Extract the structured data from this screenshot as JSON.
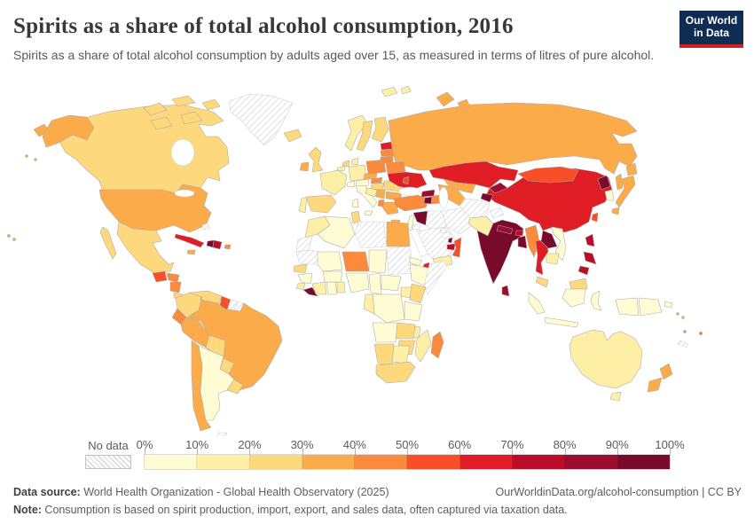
{
  "header": {
    "title": "Spirits as a share of total alcohol consumption, 2016",
    "subtitle": "Spirits as a share of total alcohol consumption by adults aged over 15, as measured in terms of litres of pure alcohol.",
    "logo": {
      "line1": "Our World",
      "line2": "in Data",
      "bg_color": "#0f2d52",
      "accent_color": "#c9262c"
    }
  },
  "legend": {
    "no_data_label": "No data",
    "tick_labels": [
      "0%",
      "10%",
      "20%",
      "30%",
      "40%",
      "50%",
      "60%",
      "70%",
      "80%",
      "90%",
      "100%"
    ],
    "bins": [
      {
        "label": "0-10%",
        "color": "#fffcd3"
      },
      {
        "label": "10-20%",
        "color": "#feefa6"
      },
      {
        "label": "20-30%",
        "color": "#fdd87c"
      },
      {
        "label": "30-40%",
        "color": "#fcab4b"
      },
      {
        "label": "40-50%",
        "color": "#fb8a3c"
      },
      {
        "label": "50-60%",
        "color": "#f84f28"
      },
      {
        "label": "60-70%",
        "color": "#e01d24"
      },
      {
        "label": "70-80%",
        "color": "#bb0d29"
      },
      {
        "label": "80-90%",
        "color": "#9c0c2f"
      },
      {
        "label": "90-100%",
        "color": "#7a0a2c"
      }
    ]
  },
  "footer": {
    "datasource_label": "Data source:",
    "datasource_text": " World Health Organization - Global Health Observatory (2025)",
    "link_text": "OurWorldinData.org/alcohol-consumption | CC BY",
    "note_label": "Note:",
    "note_text": " Consumption is based on spirit production, import, export, and sales data, often captured via taxation data."
  },
  "chart_data": {
    "type": "choropleth-map",
    "title": "Spirits as a share of total alcohol consumption",
    "year": 2016,
    "unit": "% of total alcohol consumption",
    "legend_position": "bottom",
    "bins": [
      "0-10%",
      "10-20%",
      "20-30%",
      "30-40%",
      "40-50%",
      "50-60%",
      "60-70%",
      "70-80%",
      "80-90%",
      "90-100%",
      "No data"
    ],
    "countries": [
      {
        "id": "russia",
        "name": "Russia",
        "value": "30-40%"
      },
      {
        "id": "kazakhstan",
        "name": "Kazakhstan",
        "value": "60-70%"
      },
      {
        "id": "mongolia",
        "name": "Mongolia",
        "value": "50-60%"
      },
      {
        "id": "china",
        "name": "China",
        "value": "60-70%"
      },
      {
        "id": "canada",
        "name": "Canada",
        "value": "20-30%"
      },
      {
        "id": "usa",
        "name": "United States",
        "value": "30-40%"
      },
      {
        "id": "greenland",
        "name": "Greenland",
        "value": "No data"
      },
      {
        "id": "mexico",
        "name": "Mexico",
        "value": "20-30%"
      },
      {
        "id": "guatemala",
        "name": "Guatemala",
        "value": "50-60%"
      },
      {
        "id": "honduras",
        "name": "Honduras",
        "value": "40-50%"
      },
      {
        "id": "nicaragua",
        "name": "Nicaragua",
        "value": "40-50%"
      },
      {
        "id": "costa-rica",
        "name": "Costa Rica",
        "value": "20-30%"
      },
      {
        "id": "panama",
        "name": "Panama",
        "value": "30-40%"
      },
      {
        "id": "cuba",
        "name": "Cuba",
        "value": "60-70%"
      },
      {
        "id": "jamaica",
        "name": "Jamaica",
        "value": "30-40%"
      },
      {
        "id": "haiti",
        "name": "Haiti",
        "value": "90-100%"
      },
      {
        "id": "dominican-republic",
        "name": "Dominican Republic",
        "value": "70-80%"
      },
      {
        "id": "puerto-rico",
        "name": "Puerto Rico",
        "value": "40-50%"
      },
      {
        "id": "bahamas",
        "name": "Bahamas",
        "value": "No data"
      },
      {
        "id": "colombia",
        "name": "Colombia",
        "value": "20-30%"
      },
      {
        "id": "venezuela",
        "name": "Venezuela",
        "value": "20-30%"
      },
      {
        "id": "guyana",
        "name": "Guyana",
        "value": "50-60%"
      },
      {
        "id": "suriname",
        "name": "Suriname",
        "value": "No data"
      },
      {
        "id": "french-guiana",
        "name": "French Guiana",
        "value": "No data"
      },
      {
        "id": "brazil",
        "name": "Brazil",
        "value": "30-40%"
      },
      {
        "id": "ecuador",
        "name": "Ecuador",
        "value": "40-50%"
      },
      {
        "id": "peru",
        "name": "Peru",
        "value": "30-40%"
      },
      {
        "id": "bolivia",
        "name": "Bolivia",
        "value": "20-30%"
      },
      {
        "id": "paraguay",
        "name": "Paraguay",
        "value": "20-30%"
      },
      {
        "id": "chile",
        "name": "Chile",
        "value": "30-40%"
      },
      {
        "id": "argentina",
        "name": "Argentina",
        "value": "0-10%"
      },
      {
        "id": "uruguay",
        "name": "Uruguay",
        "value": "20-30%"
      },
      {
        "id": "falkland",
        "name": "Falkland Islands",
        "value": "No data"
      },
      {
        "id": "iceland",
        "name": "Iceland",
        "value": "20-30%"
      },
      {
        "id": "uk",
        "name": "United Kingdom",
        "value": "20-30%"
      },
      {
        "id": "ireland",
        "name": "Ireland",
        "value": "30-40%"
      },
      {
        "id": "norway",
        "name": "Norway",
        "value": "10-20%"
      },
      {
        "id": "sweden",
        "name": "Sweden",
        "value": "20-30%"
      },
      {
        "id": "finland",
        "name": "Finland",
        "value": "20-30%"
      },
      {
        "id": "denmark",
        "name": "Denmark",
        "value": "10-20%"
      },
      {
        "id": "germany",
        "name": "Germany",
        "value": "10-20%"
      },
      {
        "id": "netherlands",
        "name": "Netherlands",
        "value": "20-30%"
      },
      {
        "id": "belgium",
        "name": "Belgium",
        "value": "10-20%"
      },
      {
        "id": "france",
        "name": "France",
        "value": "10-20%"
      },
      {
        "id": "spain",
        "name": "Spain",
        "value": "20-30%"
      },
      {
        "id": "portugal",
        "name": "Portugal",
        "value": "10-20%"
      },
      {
        "id": "italy",
        "name": "Italy",
        "value": "0-10%"
      },
      {
        "id": "switzerland",
        "name": "Switzerland",
        "value": "0-10%"
      },
      {
        "id": "austria",
        "name": "Austria",
        "value": "0-10%"
      },
      {
        "id": "czechia",
        "name": "Czechia",
        "value": "30-40%"
      },
      {
        "id": "poland",
        "name": "Poland",
        "value": "40-50%"
      },
      {
        "id": "slovakia",
        "name": "Slovakia",
        "value": "40-50%"
      },
      {
        "id": "hungary",
        "name": "Hungary",
        "value": "20-30%"
      },
      {
        "id": "romania",
        "name": "Romania",
        "value": "20-30%"
      },
      {
        "id": "bulgaria",
        "name": "Bulgaria",
        "value": "30-40%"
      },
      {
        "id": "serbia",
        "name": "Serbia",
        "value": "30-40%"
      },
      {
        "id": "croatia",
        "name": "Croatia",
        "value": "10-20%"
      },
      {
        "id": "albania",
        "name": "Albania",
        "value": "40-50%"
      },
      {
        "id": "greece",
        "name": "Greece",
        "value": "30-40%"
      },
      {
        "id": "estonia",
        "name": "Estonia",
        "value": "60-70%"
      },
      {
        "id": "latvia",
        "name": "Latvia",
        "value": "40-50%"
      },
      {
        "id": "lithuania",
        "name": "Lithuania",
        "value": "40-50%"
      },
      {
        "id": "belarus",
        "name": "Belarus",
        "value": "40-50%"
      },
      {
        "id": "ukraine",
        "name": "Ukraine",
        "value": "60-70%"
      },
      {
        "id": "moldova",
        "name": "Moldova",
        "value": "50-60%"
      },
      {
        "id": "turkey",
        "name": "Turkey",
        "value": "40-50%"
      },
      {
        "id": "georgia",
        "name": "Georgia",
        "value": "80-90%"
      },
      {
        "id": "armenia",
        "name": "Armenia",
        "value": "90-100%"
      },
      {
        "id": "azerbaijan",
        "name": "Azerbaijan",
        "value": "40-50%"
      },
      {
        "id": "syria",
        "name": "Syria",
        "value": "90-100%"
      },
      {
        "id": "israel",
        "name": "Israel",
        "value": "0-10%"
      },
      {
        "id": "jordan",
        "name": "Jordan",
        "value": "No data"
      },
      {
        "id": "iraq",
        "name": "Iraq",
        "value": "No data"
      },
      {
        "id": "saudi-arabia",
        "name": "Saudi Arabia",
        "value": "No data"
      },
      {
        "id": "yemen",
        "name": "Yemen",
        "value": "10-20%"
      },
      {
        "id": "oman",
        "name": "Oman",
        "value": "50-60%"
      },
      {
        "id": "uae",
        "name": "United Arab Emirates",
        "value": "70-80%"
      },
      {
        "id": "qatar",
        "name": "Qatar",
        "value": "90-100%"
      },
      {
        "id": "kuwait",
        "name": "Kuwait",
        "value": "No data"
      },
      {
        "id": "iran",
        "name": "Iran",
        "value": "No data"
      },
      {
        "id": "uzbekistan",
        "name": "Uzbekistan",
        "value": "30-40%"
      },
      {
        "id": "turkmenistan",
        "name": "Turkmenistan",
        "value": "30-40%"
      },
      {
        "id": "kyrgyzstan",
        "name": "Kyrgyzstan",
        "value": "80-90%"
      },
      {
        "id": "tajikistan",
        "name": "Tajikistan",
        "value": "90-100%"
      },
      {
        "id": "afghanistan",
        "name": "Afghanistan",
        "value": "No data"
      },
      {
        "id": "pakistan",
        "name": "Pakistan",
        "value": "10-20%"
      },
      {
        "id": "kashmir",
        "name": "Kashmir",
        "value": "No data"
      },
      {
        "id": "india",
        "name": "India",
        "value": "90-100%"
      },
      {
        "id": "nepal",
        "name": "Nepal",
        "value": "80-90%"
      },
      {
        "id": "bhutan",
        "name": "Bhutan",
        "value": "70-80%"
      },
      {
        "id": "bangladesh",
        "name": "Bangladesh",
        "value": "90-100%"
      },
      {
        "id": "sri-lanka",
        "name": "Sri Lanka",
        "value": "80-90%"
      },
      {
        "id": "myanmar",
        "name": "Myanmar",
        "value": "40-50%"
      },
      {
        "id": "thailand",
        "name": "Thailand",
        "value": "60-70%"
      },
      {
        "id": "laos",
        "name": "Laos",
        "value": "90-100%"
      },
      {
        "id": "vietnam",
        "name": "Vietnam",
        "value": "0-10%"
      },
      {
        "id": "cambodia",
        "name": "Cambodia",
        "value": "10-20%"
      },
      {
        "id": "malaysia",
        "name": "Malaysia",
        "value": "20-30%"
      },
      {
        "id": "north-korea",
        "name": "North Korea",
        "value": "90-100%"
      },
      {
        "id": "south-korea",
        "name": "South Korea",
        "value": "0-10%"
      },
      {
        "id": "japan",
        "name": "Japan",
        "value": "30-40%"
      },
      {
        "id": "taiwan",
        "name": "Taiwan",
        "value": "50-60%"
      },
      {
        "id": "philippines",
        "name": "Philippines",
        "value": "70-80%"
      },
      {
        "id": "indonesia",
        "name": "Indonesia",
        "value": "0-10%"
      },
      {
        "id": "papua-new-guinea",
        "name": "Papua New Guinea",
        "value": "0-10%"
      },
      {
        "id": "solomon-islands",
        "name": "Solomon Islands",
        "value": "30-40%"
      },
      {
        "id": "vanuatu",
        "name": "Vanuatu",
        "value": "40-50%"
      },
      {
        "id": "new-caledonia",
        "name": "New Caledonia",
        "value": "No data"
      },
      {
        "id": "fiji",
        "name": "Fiji",
        "value": "40-50%"
      },
      {
        "id": "australia",
        "name": "Australia",
        "value": "10-20%"
      },
      {
        "id": "new-zealand",
        "name": "New Zealand",
        "value": "30-40%"
      },
      {
        "id": "morocco",
        "name": "Morocco",
        "value": "10-20%"
      },
      {
        "id": "western-sahara",
        "name": "Western Sahara",
        "value": "No data"
      },
      {
        "id": "algeria",
        "name": "Algeria",
        "value": "0-10%"
      },
      {
        "id": "tunisia",
        "name": "Tunisia",
        "value": "20-30%"
      },
      {
        "id": "libya",
        "name": "Libya",
        "value": "No data"
      },
      {
        "id": "egypt",
        "name": "Egypt",
        "value": "30-40%"
      },
      {
        "id": "mauritania",
        "name": "Mauritania",
        "value": "No data"
      },
      {
        "id": "mali",
        "name": "Mali",
        "value": "0-10%"
      },
      {
        "id": "niger",
        "name": "Niger",
        "value": "40-50%"
      },
      {
        "id": "chad",
        "name": "Chad",
        "value": "0-10%"
      },
      {
        "id": "sudan",
        "name": "Sudan",
        "value": "No data"
      },
      {
        "id": "eritrea",
        "name": "Eritrea",
        "value": "0-10%"
      },
      {
        "id": "senegal",
        "name": "Senegal",
        "value": "20-30%"
      },
      {
        "id": "guinea",
        "name": "Guinea",
        "value": "0-10%"
      },
      {
        "id": "sierra-leone",
        "name": "Sierra Leone",
        "value": "10-20%"
      },
      {
        "id": "liberia",
        "name": "Liberia",
        "value": "90-100%"
      },
      {
        "id": "ivory-coast",
        "name": "Cote d'Ivoire",
        "value": "10-20%"
      },
      {
        "id": "ghana",
        "name": "Ghana",
        "value": "0-10%"
      },
      {
        "id": "benin",
        "name": "Benin",
        "value": "10-20%"
      },
      {
        "id": "burkina-faso",
        "name": "Burkina Faso",
        "value": "0-10%"
      },
      {
        "id": "nigeria",
        "name": "Nigeria",
        "value": "0-10%"
      },
      {
        "id": "cameroon",
        "name": "Cameroon",
        "value": "0-10%"
      },
      {
        "id": "central-african-republic",
        "name": "Central African Republic",
        "value": "0-10%"
      },
      {
        "id": "ethiopia",
        "name": "Ethiopia",
        "value": "0-10%"
      },
      {
        "id": "somalia",
        "name": "Somalia",
        "value": "No data"
      },
      {
        "id": "djibouti",
        "name": "Djibouti",
        "value": "60-70%"
      },
      {
        "id": "kenya",
        "name": "Kenya",
        "value": "20-30%"
      },
      {
        "id": "uganda",
        "name": "Uganda",
        "value": "10-20%"
      },
      {
        "id": "drc",
        "name": "Democratic Republic of Congo",
        "value": "0-10%"
      },
      {
        "id": "congo",
        "name": "Congo",
        "value": "10-20%"
      },
      {
        "id": "tanzania",
        "name": "Tanzania",
        "value": "0-10%"
      },
      {
        "id": "angola",
        "name": "Angola",
        "value": "0-10%"
      },
      {
        "id": "zambia",
        "name": "Zambia",
        "value": "20-30%"
      },
      {
        "id": "malawi",
        "name": "Malawi",
        "value": "10-20%"
      },
      {
        "id": "mozambique",
        "name": "Mozambique",
        "value": "10-20%"
      },
      {
        "id": "zimbabwe",
        "name": "Zimbabwe",
        "value": "20-30%"
      },
      {
        "id": "namibia",
        "name": "Namibia",
        "value": "20-30%"
      },
      {
        "id": "botswana",
        "name": "Botswana",
        "value": "10-20%"
      },
      {
        "id": "south-africa",
        "name": "South Africa",
        "value": "20-30%"
      },
      {
        "id": "madagascar",
        "name": "Madagascar",
        "value": "40-50%"
      }
    ]
  }
}
